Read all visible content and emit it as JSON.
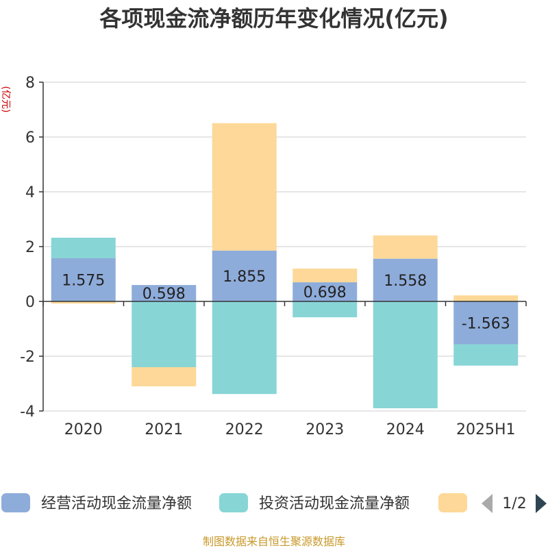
{
  "chart_data": {
    "type": "bar",
    "stacked": true,
    "title": "各项现金流净额历年变化情况(亿元)",
    "ylabel": "(亿元)",
    "xlabel": "",
    "categories": [
      "2020",
      "2021",
      "2022",
      "2023",
      "2024",
      "2025H1"
    ],
    "ylim": [
      -4,
      8
    ],
    "yticks": [
      -4,
      -2,
      0,
      2,
      4,
      6,
      8
    ],
    "grid": true,
    "series": [
      {
        "name": "经营活动现金流量净额",
        "color": "#8eacda",
        "values": [
          1.575,
          0.598,
          1.855,
          0.698,
          1.558,
          -1.563
        ]
      },
      {
        "name": "投资活动现金流量净额",
        "color": "#88d5d6",
        "values": [
          0.75,
          -2.4,
          -3.38,
          -0.58,
          -3.9,
          -0.78
        ]
      },
      {
        "name": "",
        "color": "#fdd898",
        "values": [
          -0.08,
          -0.7,
          4.65,
          0.5,
          0.85,
          0.22
        ]
      }
    ],
    "data_labels": [
      "1.575",
      "0.598",
      "1.855",
      "0.698",
      "1.558",
      "-1.563"
    ],
    "legend": {
      "position": "bottom",
      "page": "1/2"
    },
    "source": "制图数据来自恒生聚源数据库"
  }
}
